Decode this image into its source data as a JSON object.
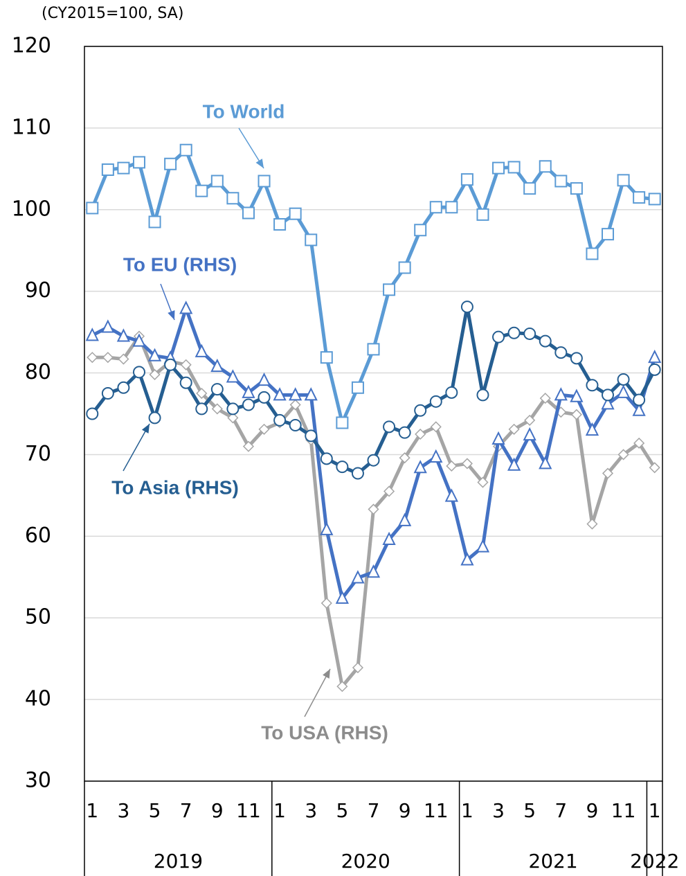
{
  "chart_data": {
    "type": "line",
    "subtitle": "(CY2015=100, SA)",
    "categories": [
      "1",
      null,
      "3",
      null,
      "5",
      null,
      "7",
      null,
      "9",
      null,
      "11",
      null,
      "1",
      null,
      "3",
      null,
      "5",
      null,
      "7",
      null,
      "9",
      null,
      "11",
      null,
      "1",
      null,
      "3",
      null,
      "5",
      null,
      "7",
      null,
      "9",
      null,
      "11",
      null,
      "1"
    ],
    "years": [
      "2019",
      "2020",
      "2021",
      "2022"
    ],
    "ylim": [
      30,
      120
    ],
    "yticks": [
      30,
      40,
      50,
      60,
      70,
      80,
      90,
      100,
      110,
      120
    ],
    "grid": true,
    "series": [
      {
        "name": "To USA (RHS)",
        "color": "#a5a5a5",
        "marker": "diamond",
        "values": [
          81.9,
          81.9,
          81.7,
          84.5,
          79.8,
          81.4,
          81.0,
          77.5,
          75.6,
          74.5,
          71.0,
          73.1,
          73.9,
          76.1,
          71.8,
          51.8,
          41.6,
          43.9,
          63.3,
          65.5,
          69.6,
          72.5,
          73.4,
          68.6,
          68.9,
          66.6,
          71.0,
          73.1,
          74.2,
          76.9,
          75.2,
          74.9,
          61.5,
          67.7,
          70.0,
          71.4,
          68.4
        ]
      },
      {
        "name": "To EU (RHS)",
        "color": "#4472c4",
        "marker": "triangle",
        "values": [
          84.6,
          85.6,
          84.5,
          83.9,
          82.1,
          81.8,
          87.9,
          82.6,
          80.8,
          79.5,
          77.6,
          79.1,
          77.3,
          77.3,
          77.3,
          60.8,
          52.4,
          54.9,
          55.6,
          59.6,
          61.9,
          68.4,
          69.7,
          64.9,
          57.1,
          58.7,
          71.9,
          68.7,
          72.4,
          68.9,
          77.3,
          77.1,
          73.0,
          76.2,
          77.6,
          75.4,
          81.9
        ]
      },
      {
        "name": "To Asia (RHS)",
        "color": "#255e91",
        "marker": "circle",
        "values": [
          75.0,
          77.5,
          78.2,
          80.1,
          74.5,
          81.0,
          78.8,
          75.6,
          78.0,
          75.6,
          76.1,
          77.0,
          74.2,
          73.6,
          72.3,
          69.5,
          68.5,
          67.7,
          69.3,
          73.4,
          72.7,
          75.4,
          76.5,
          77.6,
          88.1,
          77.3,
          84.4,
          84.9,
          84.8,
          83.9,
          82.5,
          81.8,
          78.5,
          77.3,
          79.2,
          76.7,
          80.4
        ]
      },
      {
        "name": "To World",
        "color": "#5b9bd5",
        "marker": "square",
        "values": [
          100.2,
          104.9,
          105.1,
          105.8,
          98.5,
          105.6,
          107.3,
          102.3,
          103.5,
          101.4,
          99.6,
          103.5,
          98.2,
          99.5,
          96.3,
          81.9,
          73.9,
          78.2,
          82.9,
          90.2,
          92.9,
          97.5,
          100.3,
          100.3,
          103.7,
          99.4,
          105.1,
          105.2,
          102.6,
          105.3,
          103.5,
          102.6,
          94.6,
          97.0,
          103.6,
          101.5,
          101.3
        ]
      }
    ]
  }
}
